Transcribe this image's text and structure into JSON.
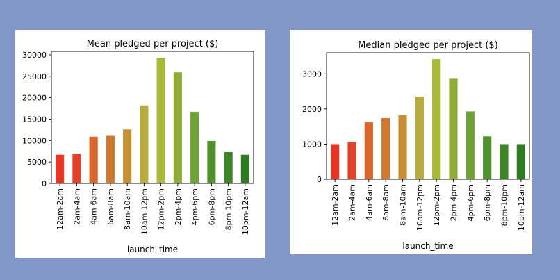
{
  "chart_data": [
    {
      "type": "bar",
      "title": "Mean pledged per project ($)",
      "xlabel": "launch_time",
      "ylabel": "",
      "categories": [
        "12am-2am",
        "2am-4am",
        "4am-6am",
        "6am-8am",
        "8am-10am",
        "10am-12pm",
        "12pm-2pm",
        "2pm-4pm",
        "4pm-6pm",
        "6pm-8pm",
        "8pm-10pm",
        "10pm-12am"
      ],
      "values": [
        6700,
        6900,
        10900,
        11100,
        12600,
        18200,
        29300,
        25900,
        16700,
        9900,
        7300,
        6700
      ],
      "ylim": [
        0,
        30800
      ],
      "yticks": [
        0,
        5000,
        10000,
        15000,
        20000,
        25000,
        30000
      ],
      "colors": [
        "#e83325",
        "#e0422b",
        "#d8652a",
        "#d0782e",
        "#c68f33",
        "#b6ab3c",
        "#a8b93a",
        "#8ead38",
        "#6ea234",
        "#4f912c",
        "#3f8426",
        "#2f7a22"
      ],
      "grid": false,
      "legend": "none"
    },
    {
      "type": "bar",
      "title": "Median pledged per project ($)",
      "xlabel": "launch_time",
      "ylabel": "",
      "categories": [
        "12am-2am",
        "2am-4am",
        "4am-6am",
        "6am-8am",
        "8am-10am",
        "10am-12pm",
        "12pm-2pm",
        "2pm-4pm",
        "4pm-6pm",
        "6pm-8pm",
        "8pm-10pm",
        "10pm-12am"
      ],
      "values": [
        1000,
        1050,
        1620,
        1740,
        1830,
        2350,
        3420,
        2880,
        1930,
        1220,
        1000,
        1000
      ],
      "ylim": [
        0,
        3600
      ],
      "yticks": [
        0,
        1000,
        2000,
        3000
      ],
      "colors": [
        "#e83325",
        "#e0422b",
        "#d8652a",
        "#d0782e",
        "#c68f33",
        "#b6ab3c",
        "#a8b93a",
        "#8ead38",
        "#6ea234",
        "#4f912c",
        "#3f8426",
        "#2f7a22"
      ],
      "grid": false,
      "legend": "none"
    }
  ]
}
